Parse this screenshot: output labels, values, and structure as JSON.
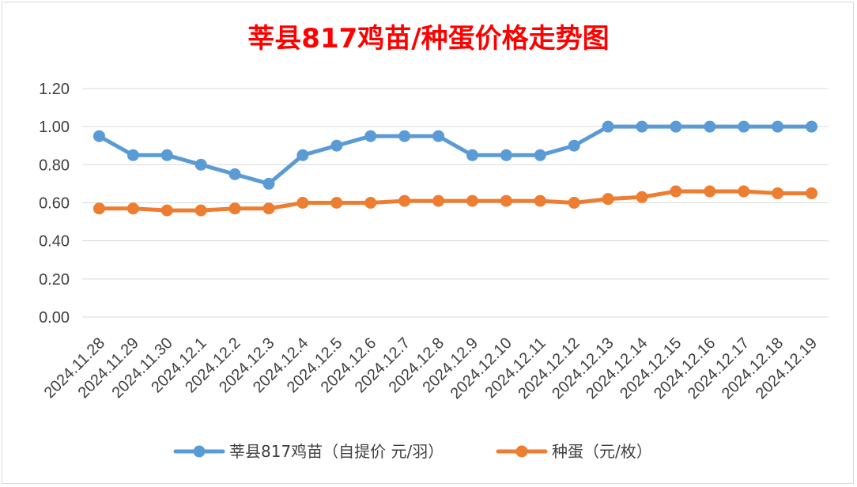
{
  "chart_data": {
    "type": "line",
    "title": "莘县817鸡苗/种蛋价格走势图",
    "xlabel": "",
    "ylabel": "",
    "ylim": [
      0,
      1.2
    ],
    "yticks": [
      "0.00",
      "0.20",
      "0.40",
      "0.60",
      "0.80",
      "1.00",
      "1.20"
    ],
    "grid": true,
    "legend_position": "bottom",
    "title_color": "#ff0000",
    "categories": [
      "2024.11.28",
      "2024.11.29",
      "2024.11.30",
      "2024.12.1",
      "2024.12.2",
      "2024.12.3",
      "2024.12.4",
      "2024.12.5",
      "2024.12.6",
      "2024.12.7",
      "2024.12.8",
      "2024.12.9",
      "2024.12.10",
      "2024.12.11",
      "2024.12.12",
      "2024.12.13",
      "2024.12.14",
      "2024.12.15",
      "2024.12.16",
      "2024.12.17",
      "2024.12.18",
      "2024.12.19"
    ],
    "series": [
      {
        "name": "莘县817鸡苗（自提价 元/羽）",
        "color": "#5b9bd5",
        "values": [
          0.95,
          0.85,
          0.85,
          0.8,
          0.75,
          0.7,
          0.85,
          0.9,
          0.95,
          0.95,
          0.95,
          0.85,
          0.85,
          0.85,
          0.9,
          1.0,
          1.0,
          1.0,
          1.0,
          1.0,
          1.0,
          1.0
        ]
      },
      {
        "name": "种蛋（元/枚）",
        "color": "#ed7d31",
        "values": [
          0.57,
          0.57,
          0.56,
          0.56,
          0.57,
          0.57,
          0.6,
          0.6,
          0.6,
          0.61,
          0.61,
          0.61,
          0.61,
          0.61,
          0.6,
          0.62,
          0.63,
          0.66,
          0.66,
          0.66,
          0.65,
          0.65
        ]
      }
    ]
  }
}
